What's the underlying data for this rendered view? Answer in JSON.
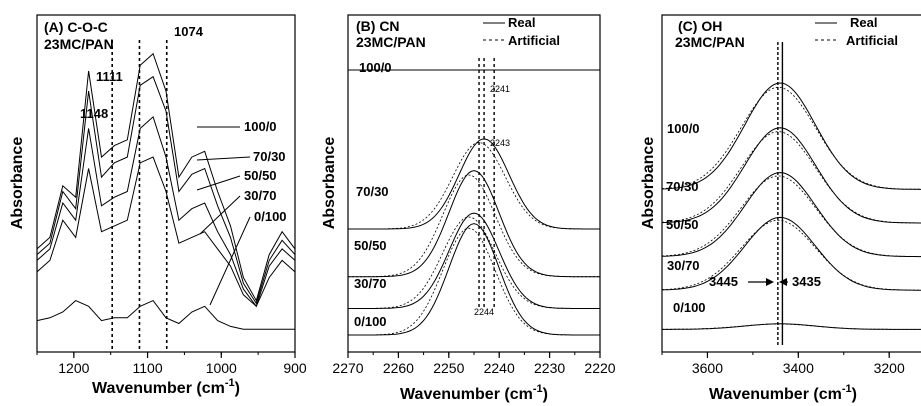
{
  "chart_data": [
    {
      "type": "line",
      "panel_label": "(A) C-O-C",
      "subtitle": "23MC/PAN",
      "xlabel": "Wavenumber (cm",
      "xlabel_sup": "-1",
      "xlabel_close": ")",
      "ylabel": "Absorbance",
      "xlim": [
        1250,
        900
      ],
      "x_ticks": [
        1200,
        1100,
        1000,
        900
      ],
      "tick_labels": [
        "1200",
        "1100",
        "1000",
        "900"
      ],
      "peak_labels": [
        "1148",
        "1111",
        "1074"
      ],
      "peak_positions": [
        1148,
        1111,
        1074
      ],
      "series": [
        {
          "name": "100/0",
          "values": [
            0.3,
            0.34,
            0.52,
            0.48,
            0.92,
            0.62,
            0.66,
            0.68,
            0.94,
            0.98,
            0.85,
            0.55,
            0.62,
            0.64,
            0.5,
            0.38,
            0.2,
            0.12,
            0.28,
            0.36,
            0.3
          ]
        },
        {
          "name": "70/30",
          "values": [
            0.28,
            0.32,
            0.5,
            0.44,
            0.85,
            0.55,
            0.6,
            0.62,
            0.87,
            0.9,
            0.78,
            0.5,
            0.56,
            0.58,
            0.45,
            0.34,
            0.18,
            0.11,
            0.26,
            0.33,
            0.28
          ]
        },
        {
          "name": "50/50",
          "values": [
            0.26,
            0.3,
            0.46,
            0.4,
            0.72,
            0.45,
            0.48,
            0.5,
            0.72,
            0.76,
            0.62,
            0.4,
            0.44,
            0.46,
            0.36,
            0.28,
            0.16,
            0.1,
            0.24,
            0.3,
            0.26
          ]
        },
        {
          "name": "30/70",
          "values": [
            0.22,
            0.26,
            0.4,
            0.34,
            0.58,
            0.36,
            0.38,
            0.4,
            0.6,
            0.62,
            0.5,
            0.32,
            0.34,
            0.36,
            0.3,
            0.24,
            0.14,
            0.1,
            0.2,
            0.26,
            0.22
          ]
        },
        {
          "name": "0/100",
          "values": [
            0.05,
            0.06,
            0.08,
            0.12,
            0.1,
            0.05,
            0.06,
            0.06,
            0.1,
            0.12,
            0.06,
            0.04,
            0.08,
            0.1,
            0.05,
            0.03,
            0.02,
            0.02,
            0.02,
            0.02,
            0.02
          ]
        }
      ]
    },
    {
      "type": "line",
      "panel_label": "(B) CN",
      "subtitle": "23MC/PAN",
      "xlabel": "Wavenumber (cm",
      "xlabel_sup": "-1",
      "xlabel_close": ")",
      "ylabel": "Absorbance",
      "xlim": [
        2270,
        2220
      ],
      "x_ticks": [
        2270,
        2260,
        2250,
        2240,
        2230,
        2220
      ],
      "tick_labels": [
        "2270",
        "2260",
        "2250",
        "2240",
        "2230",
        "2220"
      ],
      "peak_labels": [
        "2241",
        "2243",
        "2244"
      ],
      "peak_positions": [
        2241,
        2243,
        2244
      ],
      "legend": [
        "Real",
        "Artificial"
      ],
      "series": [
        {
          "name": "100/0",
          "center": 2243,
          "height": 0,
          "offset": 1.0
        },
        {
          "name": "70/30",
          "center": 2243,
          "height": 0.34,
          "offset": 0.4
        },
        {
          "name": "50/50",
          "center": 2245,
          "height": 0.4,
          "offset": 0.22
        },
        {
          "name": "30/70",
          "center": 2245,
          "height": 0.36,
          "offset": 0.1
        },
        {
          "name": "0/100",
          "center": 2245,
          "height": 0.42,
          "offset": 0.0
        }
      ]
    },
    {
      "type": "line",
      "panel_label": "(C) OH",
      "subtitle": "23MC/PAN",
      "xlabel": "Wavenumber (cm",
      "xlabel_sup": "-1",
      "xlabel_close": ")",
      "ylabel": "Absorbance",
      "xlim": [
        3700,
        3130
      ],
      "x_ticks": [
        3600,
        3400,
        3200
      ],
      "tick_labels": [
        "3600",
        "3400",
        "3200"
      ],
      "peak_labels": [
        "3445",
        "3435"
      ],
      "peak_positions": [
        3445,
        3435
      ],
      "legend": [
        "Real",
        "Artificial"
      ],
      "series": [
        {
          "name": "100/0",
          "center": 3440,
          "height": 0.38,
          "offset": 0.52
        },
        {
          "name": "70/30",
          "center": 3440,
          "height": 0.34,
          "offset": 0.4
        },
        {
          "name": "50/50",
          "center": 3440,
          "height": 0.3,
          "offset": 0.28
        },
        {
          "name": "30/70",
          "center": 3440,
          "height": 0.26,
          "offset": 0.16
        },
        {
          "name": "0/100",
          "center": 3440,
          "height": 0.02,
          "offset": 0.02
        }
      ]
    }
  ]
}
